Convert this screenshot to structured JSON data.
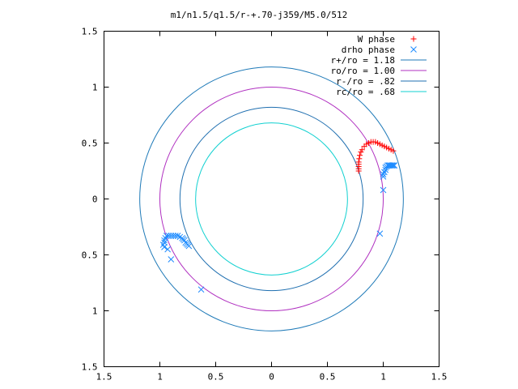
{
  "chart_data": {
    "type": "scatter",
    "title": "m1/n1.5/q1.5/r-+.70-j359/M5.0/512",
    "xlim": [
      -1.5,
      1.5
    ],
    "ylim": [
      -1.5,
      1.5
    ],
    "x_ticks": [
      -1.5,
      -1,
      -0.5,
      0,
      0.5,
      1,
      1.5
    ],
    "y_ticks": [
      -1.5,
      -1,
      -0.5,
      0,
      0.5,
      1,
      1.5
    ],
    "x_tick_labels": [
      "1.5",
      "1",
      "0.5",
      "0",
      "0.5",
      "1",
      "1.5"
    ],
    "y_tick_labels": [
      "1.5",
      "1",
      "0.5",
      "0",
      "0.5",
      "1",
      "1.5"
    ],
    "grid": false,
    "legend_position": "top-right",
    "circles": [
      {
        "label": "r+/ro = 1.18",
        "radius": 1.18,
        "color": "#1f7ab8"
      },
      {
        "label": "ro/ro = 1.00",
        "radius": 1.0,
        "color": "#b030c0"
      },
      {
        "label": "r-/ro = .82",
        "radius": 0.82,
        "color": "#1f6fb0"
      },
      {
        "label": "rc/ro = .68",
        "radius": 0.68,
        "color": "#10d0d0"
      }
    ],
    "series": [
      {
        "name": "W phase",
        "marker": "plus",
        "color": "#ff0000",
        "points": [
          [
            0.78,
            0.25
          ],
          [
            0.78,
            0.27
          ],
          [
            0.78,
            0.29
          ],
          [
            0.78,
            0.31
          ],
          [
            0.78,
            0.33
          ],
          [
            0.785,
            0.36
          ],
          [
            0.79,
            0.39
          ],
          [
            0.8,
            0.42
          ],
          [
            0.81,
            0.44
          ],
          [
            0.83,
            0.47
          ],
          [
            0.85,
            0.49
          ],
          [
            0.87,
            0.5
          ],
          [
            0.89,
            0.51
          ],
          [
            0.91,
            0.51
          ],
          [
            0.93,
            0.51
          ],
          [
            0.95,
            0.5
          ],
          [
            0.97,
            0.49
          ],
          [
            0.99,
            0.48
          ],
          [
            1.01,
            0.47
          ],
          [
            1.03,
            0.46
          ],
          [
            1.05,
            0.45
          ],
          [
            1.07,
            0.44
          ],
          [
            1.09,
            0.43
          ]
        ]
      },
      {
        "name": "drho phase",
        "marker": "cross",
        "color": "#1e8cff",
        "points": [
          [
            1.1,
            0.3
          ],
          [
            1.09,
            0.3
          ],
          [
            1.08,
            0.3
          ],
          [
            1.07,
            0.3
          ],
          [
            1.06,
            0.3
          ],
          [
            1.05,
            0.3
          ],
          [
            1.04,
            0.3
          ],
          [
            1.03,
            0.29
          ],
          [
            1.02,
            0.28
          ],
          [
            1.02,
            0.26
          ],
          [
            1.01,
            0.24
          ],
          [
            1.0,
            0.22
          ],
          [
            1.0,
            0.2
          ],
          [
            1.0,
            0.08
          ],
          [
            0.97,
            -0.31
          ],
          [
            -0.94,
            -0.33
          ],
          [
            -0.92,
            -0.33
          ],
          [
            -0.9,
            -0.33
          ],
          [
            -0.88,
            -0.33
          ],
          [
            -0.86,
            -0.33
          ],
          [
            -0.84,
            -0.33
          ],
          [
            -0.82,
            -0.34
          ],
          [
            -0.8,
            -0.35
          ],
          [
            -0.79,
            -0.36
          ],
          [
            -0.78,
            -0.37
          ],
          [
            -0.77,
            -0.39
          ],
          [
            -0.76,
            -0.4
          ],
          [
            -0.75,
            -0.41
          ],
          [
            -0.74,
            -0.42
          ],
          [
            -0.95,
            -0.35
          ],
          [
            -0.96,
            -0.37
          ],
          [
            -0.96,
            -0.39
          ],
          [
            -0.97,
            -0.41
          ],
          [
            -0.96,
            -0.43
          ],
          [
            -0.93,
            -0.45
          ],
          [
            -0.9,
            -0.54
          ],
          [
            -0.63,
            -0.81
          ]
        ]
      }
    ]
  }
}
